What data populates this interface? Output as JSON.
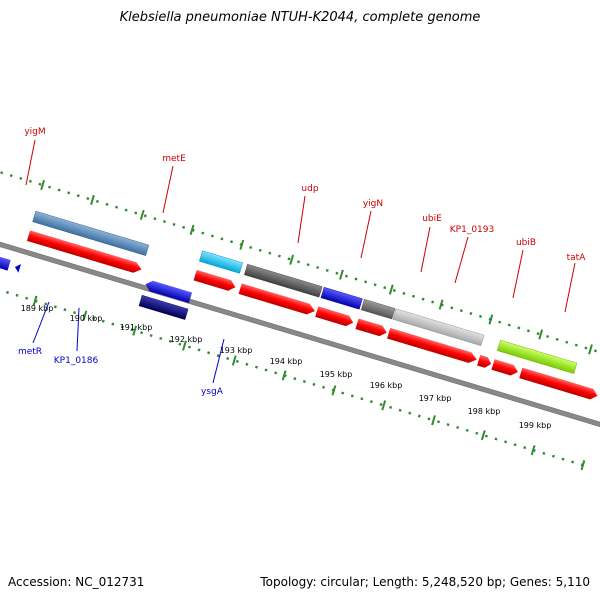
{
  "title": "Klebsiella pneumoniae NTUH-K2044, complete genome",
  "accession": "Accession: NC_012731",
  "topology": "Topology: circular; Length: 5,248,520 bp; Genes: 5,110",
  "colors": {
    "forward_label": "#cc0000",
    "reverse_label": "#0000cc",
    "tick": "#2e8b2e",
    "backbone": "#888888",
    "cds": "#ff0000"
  },
  "scale": {
    "ticks": [
      "189 kbp",
      "190 kbp",
      "191 kbp",
      "192 kbp",
      "193 kbp",
      "194 kbp",
      "195 kbp",
      "196 kbp",
      "197 kbp",
      "198 kbp",
      "199 kbp"
    ]
  },
  "top_labels": [
    {
      "name": "yigM"
    },
    {
      "name": "metE"
    },
    {
      "name": "udp"
    },
    {
      "name": "yigN"
    },
    {
      "name": "ubiE"
    },
    {
      "name": "KP1_0193"
    },
    {
      "name": "ubiB"
    },
    {
      "name": "tatA"
    }
  ],
  "bottom_labels": [
    {
      "name": "metR"
    },
    {
      "name": "KP1_0186"
    },
    {
      "name": "ysgA"
    }
  ]
}
